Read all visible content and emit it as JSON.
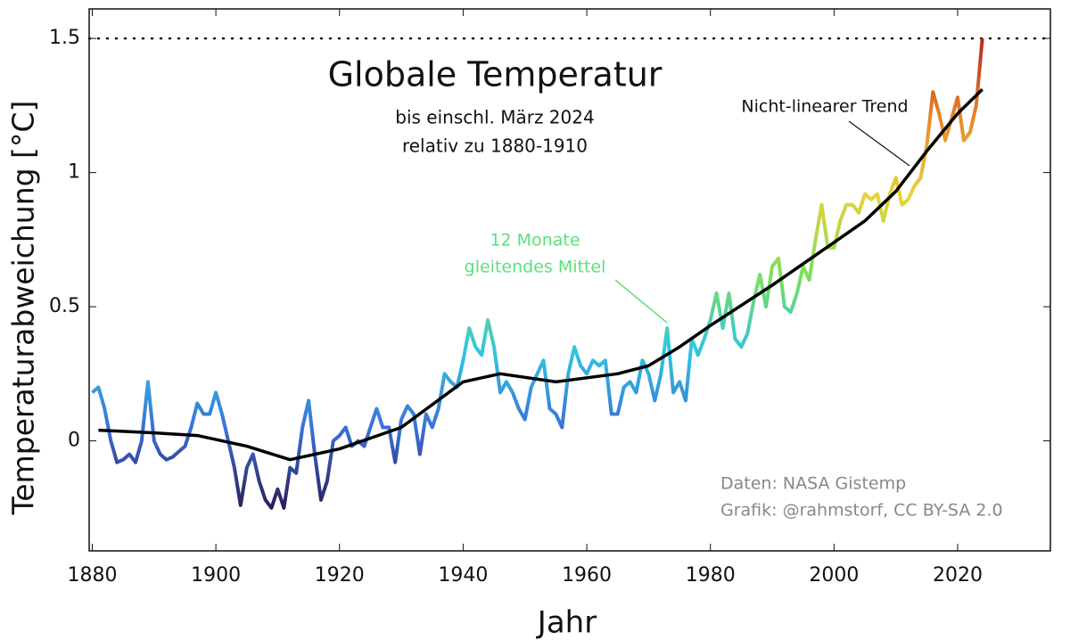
{
  "chart_data": {
    "type": "line",
    "title": "Globale Temperatur",
    "subtitle": [
      "bis einschl. März 2024",
      "relativ zu 1880-1910"
    ],
    "x_label": "Jahr",
    "y_label": "Temperaturabweichung [°C]",
    "xlim": [
      1879.5,
      2035
    ],
    "ylim": [
      -0.41,
      1.61
    ],
    "xticks": [
      1880,
      1900,
      1920,
      1940,
      1960,
      1980,
      2000,
      2020
    ],
    "yticks": [
      0,
      0.5,
      1,
      1.5
    ],
    "reference_line": 1.5,
    "series": [
      {
        "name": "12 Monate gleitendes Mittel",
        "label_lines": [
          "12 Monate",
          "gleitendes Mittel"
        ],
        "label_color": "#5ee07a",
        "colors": [
          "#2a1f5c",
          "#3b6fd6",
          "#2fc6e0",
          "#7ee05a",
          "#e8d23a",
          "#e8852a",
          "#b52a1e"
        ],
        "x": [
          1880,
          1881,
          1882,
          1883,
          1884,
          1885,
          1886,
          1887,
          1888,
          1889,
          1890,
          1891,
          1892,
          1893,
          1894,
          1895,
          1896,
          1897,
          1898,
          1899,
          1900,
          1901,
          1902,
          1903,
          1904,
          1905,
          1906,
          1907,
          1908,
          1909,
          1910,
          1911,
          1912,
          1913,
          1914,
          1915,
          1916,
          1917,
          1918,
          1919,
          1920,
          1921,
          1922,
          1923,
          1924,
          1925,
          1926,
          1927,
          1928,
          1929,
          1930,
          1931,
          1932,
          1933,
          1934,
          1935,
          1936,
          1937,
          1938,
          1939,
          1940,
          1941,
          1942,
          1943,
          1944,
          1945,
          1946,
          1947,
          1948,
          1949,
          1950,
          1951,
          1952,
          1953,
          1954,
          1955,
          1956,
          1957,
          1958,
          1959,
          1960,
          1961,
          1962,
          1963,
          1964,
          1965,
          1966,
          1967,
          1968,
          1969,
          1970,
          1971,
          1972,
          1973,
          1974,
          1975,
          1976,
          1977,
          1978,
          1979,
          1980,
          1981,
          1982,
          1983,
          1984,
          1985,
          1986,
          1987,
          1988,
          1989,
          1990,
          1991,
          1992,
          1993,
          1994,
          1995,
          1996,
          1997,
          1998,
          1999,
          2000,
          2001,
          2002,
          2003,
          2004,
          2005,
          2006,
          2007,
          2008,
          2009,
          2010,
          2011,
          2012,
          2013,
          2014,
          2015,
          2016,
          2017,
          2018,
          2019,
          2020,
          2021,
          2022,
          2023,
          2024
        ],
        "values": [
          0.18,
          0.2,
          0.12,
          0.0,
          -0.08,
          -0.07,
          -0.05,
          -0.08,
          0.0,
          0.22,
          0.0,
          -0.05,
          -0.07,
          -0.06,
          -0.04,
          -0.02,
          0.05,
          0.14,
          0.1,
          0.1,
          0.18,
          0.1,
          0.0,
          -0.1,
          -0.24,
          -0.1,
          -0.05,
          -0.15,
          -0.22,
          -0.25,
          -0.18,
          -0.25,
          -0.1,
          -0.12,
          0.05,
          0.15,
          -0.05,
          -0.22,
          -0.15,
          0.0,
          0.02,
          0.05,
          -0.02,
          0.0,
          -0.02,
          0.05,
          0.12,
          0.05,
          0.05,
          -0.08,
          0.08,
          0.13,
          0.1,
          -0.05,
          0.1,
          0.05,
          0.12,
          0.25,
          0.22,
          0.2,
          0.3,
          0.42,
          0.35,
          0.32,
          0.45,
          0.35,
          0.18,
          0.22,
          0.18,
          0.12,
          0.08,
          0.2,
          0.25,
          0.3,
          0.12,
          0.1,
          0.05,
          0.25,
          0.35,
          0.28,
          0.25,
          0.3,
          0.28,
          0.3,
          0.1,
          0.1,
          0.2,
          0.22,
          0.18,
          0.3,
          0.25,
          0.15,
          0.25,
          0.42,
          0.18,
          0.22,
          0.15,
          0.38,
          0.32,
          0.38,
          0.45,
          0.55,
          0.42,
          0.55,
          0.38,
          0.35,
          0.4,
          0.52,
          0.62,
          0.5,
          0.65,
          0.68,
          0.5,
          0.48,
          0.55,
          0.65,
          0.6,
          0.75,
          0.88,
          0.72,
          0.72,
          0.82,
          0.88,
          0.88,
          0.85,
          0.92,
          0.9,
          0.92,
          0.82,
          0.92,
          0.98,
          0.88,
          0.9,
          0.95,
          0.98,
          1.1,
          1.3,
          1.22,
          1.12,
          1.2,
          1.28,
          1.12,
          1.15,
          1.25,
          1.5
        ]
      },
      {
        "name": "Nicht-linearer Trend",
        "color": "#000000",
        "x": [
          1881,
          1890,
          1897,
          1905,
          1912,
          1920,
          1930,
          1940,
          1946,
          1955,
          1965,
          1970,
          1975,
          1980,
          1990,
          2000,
          2005,
          2010,
          2015,
          2020,
          2024
        ],
        "values": [
          0.04,
          0.03,
          0.02,
          -0.02,
          -0.07,
          -0.03,
          0.05,
          0.22,
          0.25,
          0.22,
          0.25,
          0.28,
          0.35,
          0.43,
          0.58,
          0.74,
          0.82,
          0.93,
          1.08,
          1.22,
          1.31
        ]
      }
    ],
    "source": [
      "Daten: NASA Gistemp",
      "Grafik: @rahmstorf, CC BY-SA 2.0"
    ]
  }
}
